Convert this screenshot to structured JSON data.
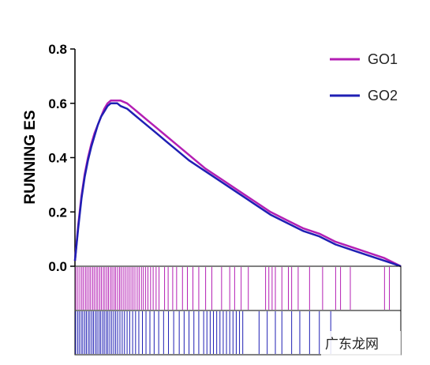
{
  "chart_data": {
    "type": "line",
    "ylabel": "RUNNING ES",
    "ylim": [
      0.0,
      0.8
    ],
    "yticks": [
      "0.0",
      "0.2",
      "0.4",
      "0.6",
      "0.8"
    ],
    "grid": false,
    "legend_position": "top-right",
    "x": [
      0,
      1,
      2,
      3,
      4,
      5,
      6,
      7,
      8,
      9,
      10,
      11,
      12,
      13,
      14,
      16,
      18,
      20,
      22,
      25,
      28,
      31,
      35,
      40,
      45,
      50,
      55,
      60,
      65,
      70,
      75,
      80,
      85,
      90,
      95,
      100
    ],
    "series": [
      {
        "name": "GO1",
        "color": "#b41fb4",
        "values": [
          0.02,
          0.15,
          0.26,
          0.34,
          0.4,
          0.45,
          0.49,
          0.52,
          0.55,
          0.58,
          0.6,
          0.61,
          0.61,
          0.61,
          0.61,
          0.6,
          0.58,
          0.56,
          0.54,
          0.51,
          0.48,
          0.45,
          0.41,
          0.36,
          0.32,
          0.28,
          0.24,
          0.2,
          0.17,
          0.14,
          0.12,
          0.09,
          0.07,
          0.05,
          0.03,
          0.0
        ]
      },
      {
        "name": "GO2",
        "color": "#1f1fb4",
        "values": [
          0.02,
          0.14,
          0.25,
          0.33,
          0.39,
          0.44,
          0.48,
          0.52,
          0.55,
          0.57,
          0.59,
          0.6,
          0.6,
          0.6,
          0.59,
          0.58,
          0.56,
          0.54,
          0.52,
          0.49,
          0.46,
          0.43,
          0.39,
          0.35,
          0.31,
          0.27,
          0.23,
          0.19,
          0.16,
          0.13,
          0.11,
          0.08,
          0.06,
          0.04,
          0.02,
          0.0
        ]
      }
    ],
    "hit_positions": [
      [
        0.3,
        0.9,
        1.5,
        2.1,
        2.6,
        3.2,
        3.7,
        4.3,
        4.8,
        5.4,
        5.9,
        6.5,
        7.0,
        7.6,
        8.1,
        8.7,
        9.2,
        9.8,
        10.3,
        10.9,
        11.4,
        12.0,
        12.5,
        13.1,
        13.7,
        14.2,
        14.8,
        15.4,
        16.0,
        16.6,
        17.2,
        17.8,
        18.4,
        19.1,
        19.7,
        20.4,
        21.0,
        21.7,
        22.4,
        23.2,
        24.0,
        24.9,
        25.8,
        27.5,
        28.6,
        30.0,
        31.2,
        33.0,
        34.5,
        36.2,
        38.0,
        40.1,
        42.0,
        45.0,
        47.5,
        49.0,
        51.0,
        53.2,
        58.5,
        59.5,
        60.5,
        61.5,
        63.5,
        65.5,
        66.5,
        68.5,
        72.0,
        76.0,
        80.0,
        81.5,
        84.5,
        95.0,
        96.5
      ],
      [
        0.2,
        0.8,
        1.3,
        1.9,
        2.4,
        3.0,
        3.5,
        4.1,
        4.6,
        5.2,
        5.7,
        6.3,
        6.8,
        7.4,
        7.9,
        8.5,
        9.0,
        9.6,
        10.1,
        10.7,
        11.3,
        11.9,
        12.5,
        13.1,
        13.8,
        14.5,
        15.2,
        16.0,
        16.8,
        17.7,
        18.6,
        19.6,
        20.7,
        21.8,
        23.0,
        24.3,
        25.7,
        27.2,
        28.7,
        30.3,
        32.0,
        33.5,
        35.0,
        36.5,
        38.0,
        39.5,
        40.5,
        41.5,
        42.5,
        43.5,
        44.5,
        45.5,
        46.5,
        47.5,
        48.5,
        49.5,
        50.5,
        51.5,
        56.5,
        59.0,
        61.5,
        63.5,
        66.5,
        69.0,
        72.0,
        75.0,
        78.5
      ]
    ]
  },
  "watermark": "广东龙网"
}
